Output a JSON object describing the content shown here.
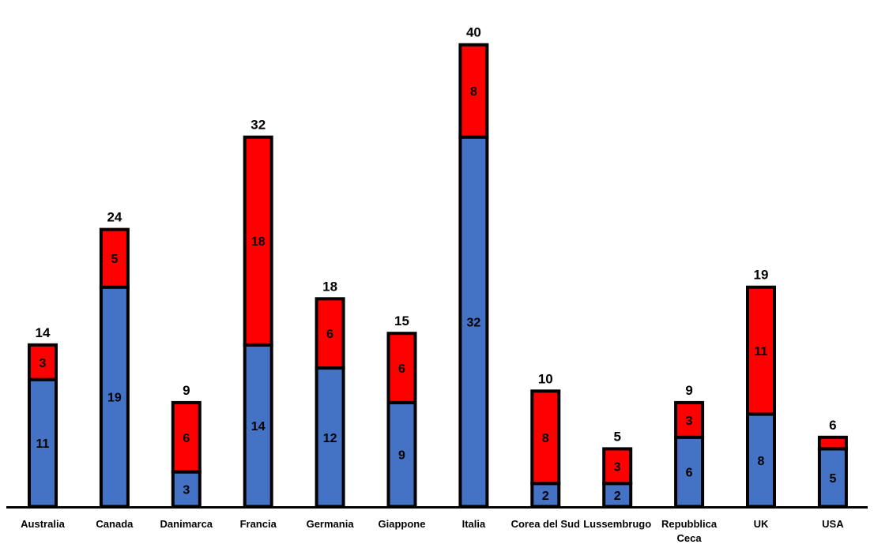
{
  "chart_data": {
    "type": "bar",
    "stacked": true,
    "title": "",
    "xlabel": "",
    "ylabel": "",
    "ylim": [
      0,
      40
    ],
    "grid": false,
    "legend": "none",
    "categories": [
      [
        "Australia"
      ],
      [
        "Canada"
      ],
      [
        "Danimarca"
      ],
      [
        "Francia"
      ],
      [
        "Germania"
      ],
      [
        "Giappone"
      ],
      [
        "Italia"
      ],
      [
        "Corea del Sud"
      ],
      [
        "Lussembrugo"
      ],
      [
        "Repubblica",
        "Ceca"
      ],
      [
        "UK"
      ],
      [
        "USA"
      ]
    ],
    "series": [
      {
        "color": "#4472C4",
        "values": [
          11,
          19,
          3,
          14,
          12,
          9,
          32,
          2,
          2,
          6,
          8,
          5
        ]
      },
      {
        "color": "#FF0000",
        "values": [
          3,
          5,
          6,
          18,
          6,
          6,
          8,
          8,
          3,
          3,
          11,
          1
        ]
      }
    ],
    "totals": [
      14,
      24,
      9,
      32,
      18,
      15,
      40,
      10,
      5,
      9,
      19,
      6
    ],
    "segment_label_exceptions": [
      {
        "series": 1,
        "index": 11,
        "label": ""
      }
    ],
    "axis_color": "#000000",
    "outline_color": "#000000"
  }
}
